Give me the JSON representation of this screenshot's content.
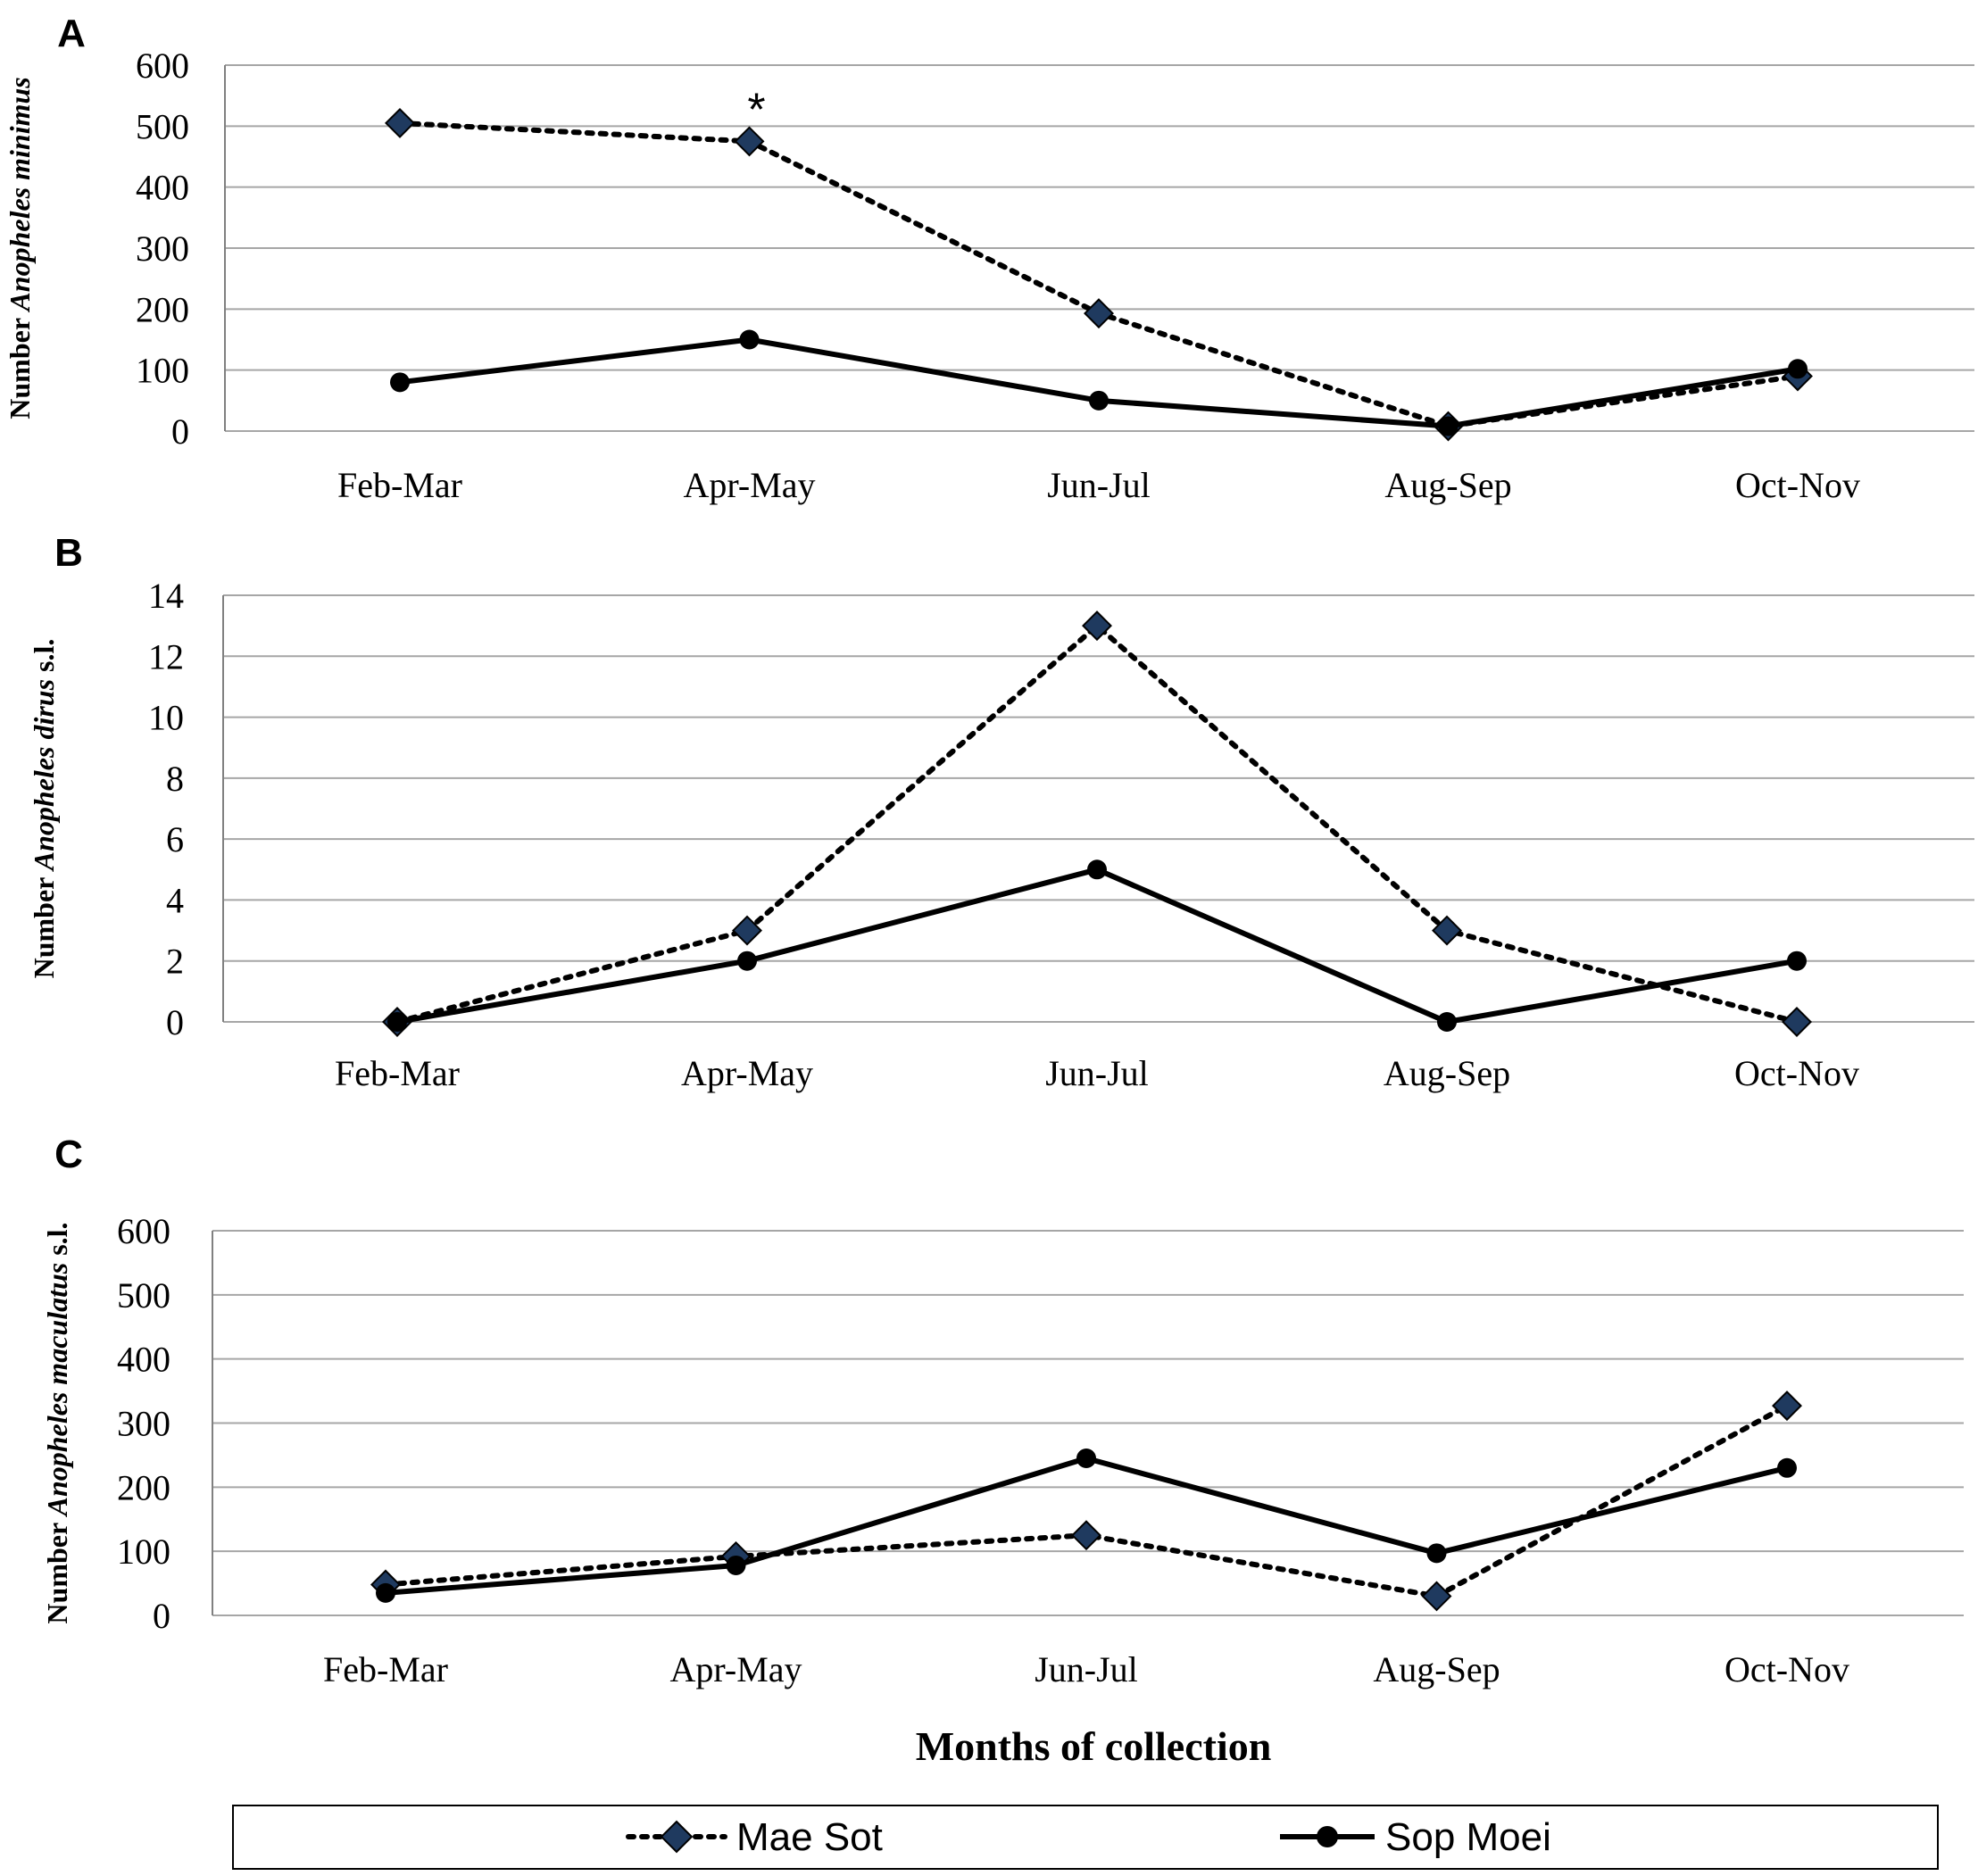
{
  "chart_data": [
    {
      "type": "line",
      "panel": "A",
      "ylabel": {
        "prefix": "Number ",
        "species": "Anopheles minimus",
        "suffix": ""
      },
      "categories": [
        "Feb-Mar",
        "Apr-May",
        "Jun-Jul",
        "Aug-Sep",
        "Oct-Nov"
      ],
      "ylim": [
        0,
        600
      ],
      "yticks": [
        0,
        100,
        200,
        300,
        400,
        500,
        600
      ],
      "series": [
        {
          "name": "Mae Sot",
          "values": [
            505,
            475,
            193,
            8,
            90
          ]
        },
        {
          "name": "Sop Moei",
          "values": [
            80,
            150,
            50,
            8,
            102
          ]
        }
      ],
      "annotation": {
        "text": "*",
        "category": "Apr-May"
      }
    },
    {
      "type": "line",
      "panel": "B",
      "ylabel": {
        "prefix": "Number ",
        "species": "Anopheles dirus",
        "suffix": " s.l."
      },
      "categories": [
        "Feb-Mar",
        "Apr-May",
        "Jun-Jul",
        "Aug-Sep",
        "Oct-Nov"
      ],
      "ylim": [
        0,
        14
      ],
      "yticks": [
        0,
        2,
        4,
        6,
        8,
        10,
        12,
        14
      ],
      "series": [
        {
          "name": "Mae Sot",
          "values": [
            0,
            3,
            13,
            3,
            0
          ]
        },
        {
          "name": "Sop Moei",
          "values": [
            0,
            2,
            5,
            0,
            2
          ]
        }
      ]
    },
    {
      "type": "line",
      "panel": "C",
      "ylabel": {
        "prefix": "Number ",
        "species": "Anopheles maculatus",
        "suffix": " s.l."
      },
      "categories": [
        "Feb-Mar",
        "Apr-May",
        "Jun-Jul",
        "Aug-Sep",
        "Oct-Nov"
      ],
      "ylim": [
        0,
        600
      ],
      "yticks": [
        0,
        100,
        200,
        300,
        400,
        500,
        600
      ],
      "series": [
        {
          "name": "Mae Sot",
          "values": [
            48,
            92,
            125,
            30,
            327
          ]
        },
        {
          "name": "Sop Moei",
          "values": [
            35,
            78,
            245,
            97,
            230
          ]
        }
      ]
    }
  ],
  "xlabel": "Months of collection",
  "legend": [
    {
      "name": "Mae Sot",
      "style": "dotted-diamond"
    },
    {
      "name": "Sop Moei",
      "style": "solid-circle"
    }
  ],
  "colors": {
    "mae_sot_marker": "#1f3a5f",
    "sop_moei": "#000000",
    "grid": "#a6a6a6",
    "axis": "#808080"
  }
}
